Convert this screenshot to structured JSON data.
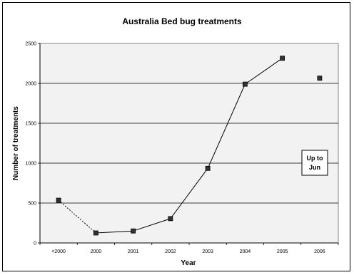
{
  "chart_data": {
    "type": "line",
    "title": "Australia Bed bug treatments",
    "xlabel": "Year",
    "ylabel": "Number of treatments",
    "categories": [
      "<2000",
      "2000",
      "2001",
      "2002",
      "2003",
      "2004",
      "2005",
      "2006"
    ],
    "values": [
      535,
      125,
      150,
      305,
      935,
      1990,
      2315,
      2065
    ],
    "ylim": [
      0,
      2500
    ],
    "yticks": [
      0,
      500,
      1000,
      1500,
      2000,
      2500
    ],
    "gridlines": true,
    "plot_background": "#f2f2f2",
    "line_color": "#000000",
    "marker_color": "#333333",
    "dotted_segment_end_index": 1,
    "connected_until_index": 6,
    "annotation": {
      "text_line1": "Up to",
      "text_line2": "Jun",
      "points_to": "2006"
    }
  }
}
